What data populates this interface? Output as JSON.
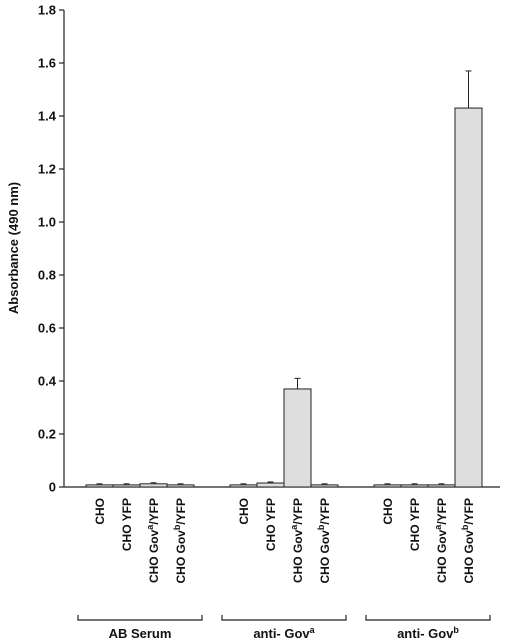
{
  "chart_data": {
    "type": "bar",
    "ylabel": "Absorbance (490 nm)",
    "ylim": [
      0,
      1.8
    ],
    "yticks": [
      "0",
      "0.2",
      "0.4",
      "0.6",
      "0.8",
      "1.0",
      "1.2",
      "1.4",
      "1.6",
      "1.8"
    ],
    "groups": [
      {
        "label": "AB Serum",
        "label_main": "AB Serum",
        "label_sup": "",
        "bars": [
          {
            "label": "CHO",
            "value": 0.008,
            "error": 0.004
          },
          {
            "label": "CHO YFP",
            "value": 0.008,
            "error": 0.004
          },
          {
            "label": "CHO Gova/YFP",
            "value": 0.012,
            "error": 0.004
          },
          {
            "label": "CHO Govb/YFP",
            "value": 0.008,
            "error": 0.004
          }
        ]
      },
      {
        "label": "anti- Gova",
        "label_main": "anti- Gov",
        "label_sup": "a",
        "bars": [
          {
            "label": "CHO",
            "value": 0.008,
            "error": 0.004
          },
          {
            "label": "CHO YFP",
            "value": 0.015,
            "error": 0.004
          },
          {
            "label": "CHO Gova/YFP",
            "value": 0.37,
            "error": 0.04
          },
          {
            "label": "CHO Govb/YFP",
            "value": 0.008,
            "error": 0.004
          }
        ]
      },
      {
        "label": "anti- Govb",
        "label_main": "anti- Gov",
        "label_sup": "b",
        "bars": [
          {
            "label": "CHO",
            "value": 0.008,
            "error": 0.004
          },
          {
            "label": "CHO YFP",
            "value": 0.008,
            "error": 0.004
          },
          {
            "label": "CHO Gova/YFP",
            "value": 0.008,
            "error": 0.004
          },
          {
            "label": "CHO Govb/YFP",
            "value": 1.43,
            "error": 0.14
          }
        ]
      }
    ],
    "category_parts": [
      {
        "main": "CHO",
        "sup": "",
        "tail": ""
      },
      {
        "main": "CHO YFP",
        "sup": "",
        "tail": ""
      },
      {
        "main": "CHO Gov",
        "sup": "a",
        "tail": "/YFP"
      },
      {
        "main": "CHO Gov",
        "sup": "b",
        "tail": "/YFP"
      }
    ],
    "grid": false,
    "legend": "none"
  }
}
